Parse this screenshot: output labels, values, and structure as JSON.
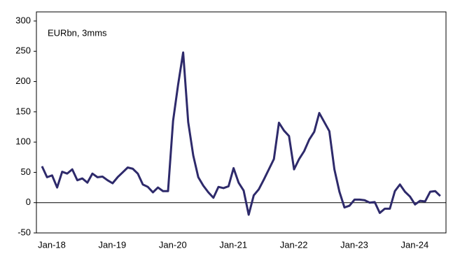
{
  "chart_data": {
    "type": "line",
    "annotation": "EURbn, 3mms",
    "categories": [
      "Jan-18",
      null,
      null,
      null,
      null,
      null,
      null,
      null,
      null,
      null,
      null,
      null,
      "Jan-19",
      null,
      null,
      null,
      null,
      null,
      null,
      null,
      null,
      null,
      null,
      null,
      "Jan-20",
      null,
      null,
      null,
      null,
      null,
      null,
      null,
      null,
      null,
      null,
      null,
      "Jan-21",
      null,
      null,
      null,
      null,
      null,
      null,
      null,
      null,
      null,
      null,
      null,
      "Jan-22",
      null,
      null,
      null,
      null,
      null,
      null,
      null,
      null,
      null,
      null,
      null,
      "Jan-23",
      null,
      null,
      null,
      null,
      null,
      null,
      null,
      null,
      null,
      null,
      null,
      "Jan-24",
      null,
      null,
      null,
      null,
      null,
      null,
      null
    ],
    "series": [
      {
        "color": "#2e2a6b",
        "values": [
          60,
          42,
          45,
          25,
          51,
          48,
          55,
          37,
          40,
          33,
          48,
          42,
          43,
          37,
          32,
          42,
          50,
          58,
          56,
          48,
          30,
          26,
          17,
          25,
          19,
          19,
          135,
          195,
          248,
          133,
          78,
          42,
          28,
          17,
          8,
          26,
          24,
          27,
          57,
          33,
          20,
          -20,
          12,
          22,
          38,
          55,
          72,
          132,
          119,
          110,
          55,
          72,
          85,
          104,
          117,
          148,
          133,
          118,
          55,
          18,
          -8,
          -5,
          5,
          5,
          4,
          0,
          1,
          -17,
          -10,
          -10,
          19,
          30,
          18,
          10,
          -3,
          3,
          2,
          18,
          19,
          11
        ]
      }
    ],
    "ylim": [
      -50,
      300
    ],
    "yticks": [
      -50,
      0,
      50,
      100,
      150,
      200,
      250,
      300
    ]
  }
}
